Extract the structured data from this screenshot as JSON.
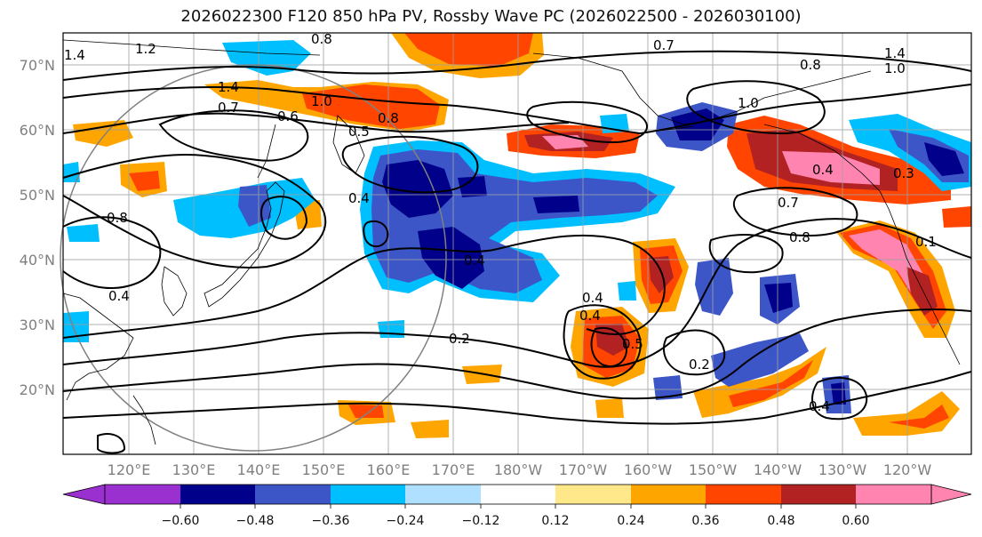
{
  "title": "2026022300 F120 850 hPa PV, Rossby Wave PC (2026022500 - 2026030100)",
  "map": {
    "lat_labels": [
      "70°N",
      "60°N",
      "50°N",
      "40°N",
      "30°N",
      "20°N"
    ],
    "lon_labels": [
      "120°E",
      "130°E",
      "140°E",
      "150°E",
      "160°E",
      "170°E",
      "180°W",
      "170°W",
      "160°W",
      "150°W",
      "140°W",
      "130°W",
      "120°W"
    ],
    "contour_labels": [
      "1.4",
      "1.2",
      "0.8",
      "0.7",
      "0.8",
      "1.4",
      "1.0",
      "1.4",
      "0.7",
      "1.0",
      "0.6",
      "0.8",
      "0.5",
      "1.0",
      "0.4",
      "0.3",
      "0.4",
      "0.7",
      "0.8",
      "0.1",
      "0.4",
      "0.4",
      "0.4",
      "0.2",
      "0.4",
      "0.5",
      "0.2",
      "0.4",
      "0.8"
    ]
  },
  "colorbar": {
    "ticks": [
      "−0.60",
      "−0.48",
      "−0.36",
      "−0.24",
      "−0.12",
      "0.12",
      "0.24",
      "0.36",
      "0.48",
      "0.60"
    ],
    "colors": [
      "#9b30d0",
      "#00008b",
      "#3c56c8",
      "#00bfff",
      "#b0e0ff",
      "#ffffff",
      "#ffe88a",
      "#ffa500",
      "#ff4500",
      "#b22222",
      "#ff85b0"
    ]
  },
  "colors": {
    "neg_strong": "#00008b",
    "neg_mid": "#3c56c8",
    "neg_light": "#00bfff",
    "pos_light": "#ffa500",
    "pos_mid": "#ff4500",
    "pos_strong": "#b22222",
    "pos_max": "#ff85b0"
  }
}
